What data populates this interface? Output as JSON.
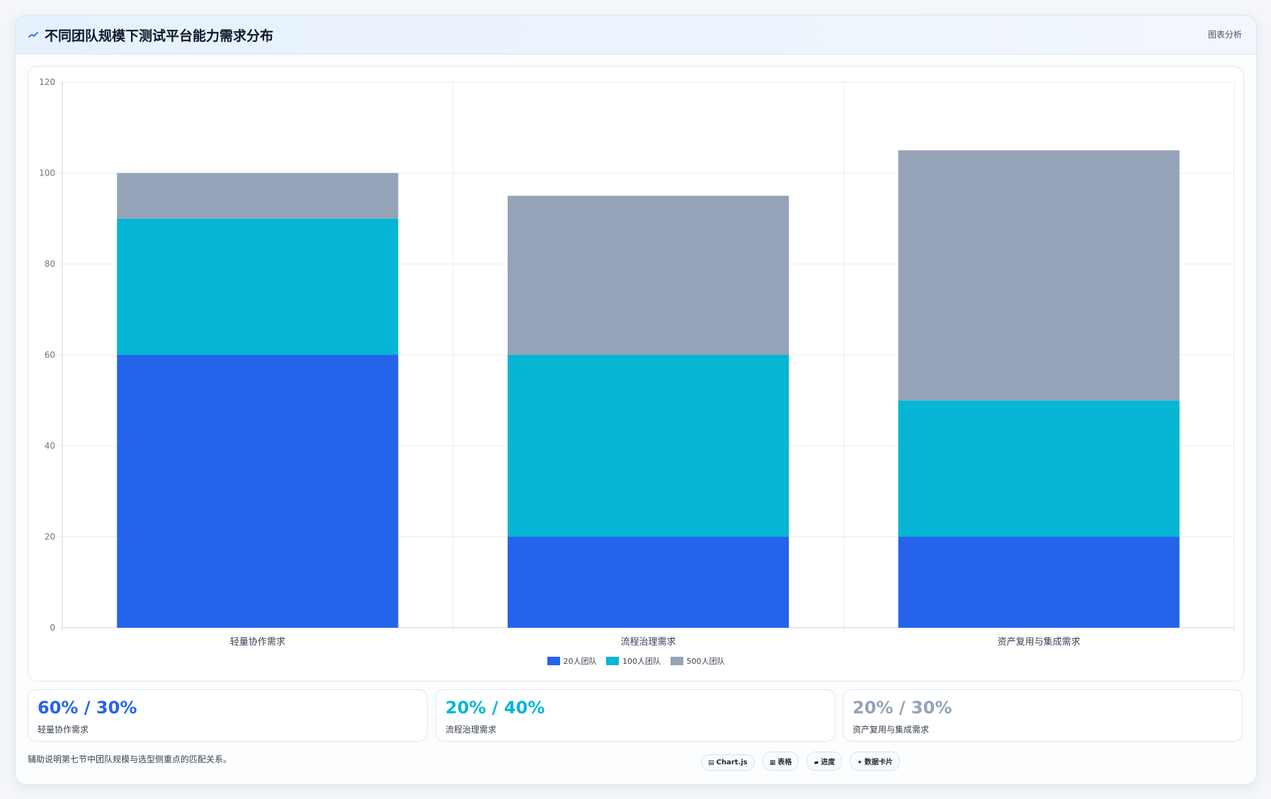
{
  "header": {
    "title": "不同团队规模下测试平台能力需求分布",
    "action_label": "图表分析"
  },
  "chart_data": {
    "type": "bar",
    "stacked": true,
    "categories": [
      "轻量协作需求",
      "流程治理需求",
      "资产复用与集成需求"
    ],
    "series": [
      {
        "name": "20人团队",
        "values": [
          60,
          20,
          20
        ],
        "color": "#2563eb"
      },
      {
        "name": "100人团队",
        "values": [
          30,
          40,
          30
        ],
        "color": "#06b6d4"
      },
      {
        "name": "500人团队",
        "values": [
          10,
          35,
          55
        ],
        "color": "#94a3b8"
      }
    ],
    "ylim": [
      0,
      120
    ],
    "yticks": [
      "0",
      "20",
      "40",
      "60",
      "80",
      "100",
      "120"
    ],
    "grid": true,
    "legend": "bottom"
  },
  "stats": [
    {
      "value": "60% / 30%",
      "label": "轻量协作需求",
      "color": "#2563eb"
    },
    {
      "value": "20% / 40%",
      "label": "流程治理需求",
      "color": "#06b6d4"
    },
    {
      "value": "20% / 30%",
      "label": "资产复用与集成需求",
      "color": "#94a3b8"
    }
  ],
  "footnote": "辅助说明第七节中团队规模与选型侧重点的匹配关系。",
  "tags": [
    {
      "icon": "▤",
      "label": "Chart.js"
    },
    {
      "icon": "▦",
      "label": "表格"
    },
    {
      "icon": "▰",
      "label": "进度"
    },
    {
      "icon": "✦",
      "label": "数据卡片"
    }
  ]
}
